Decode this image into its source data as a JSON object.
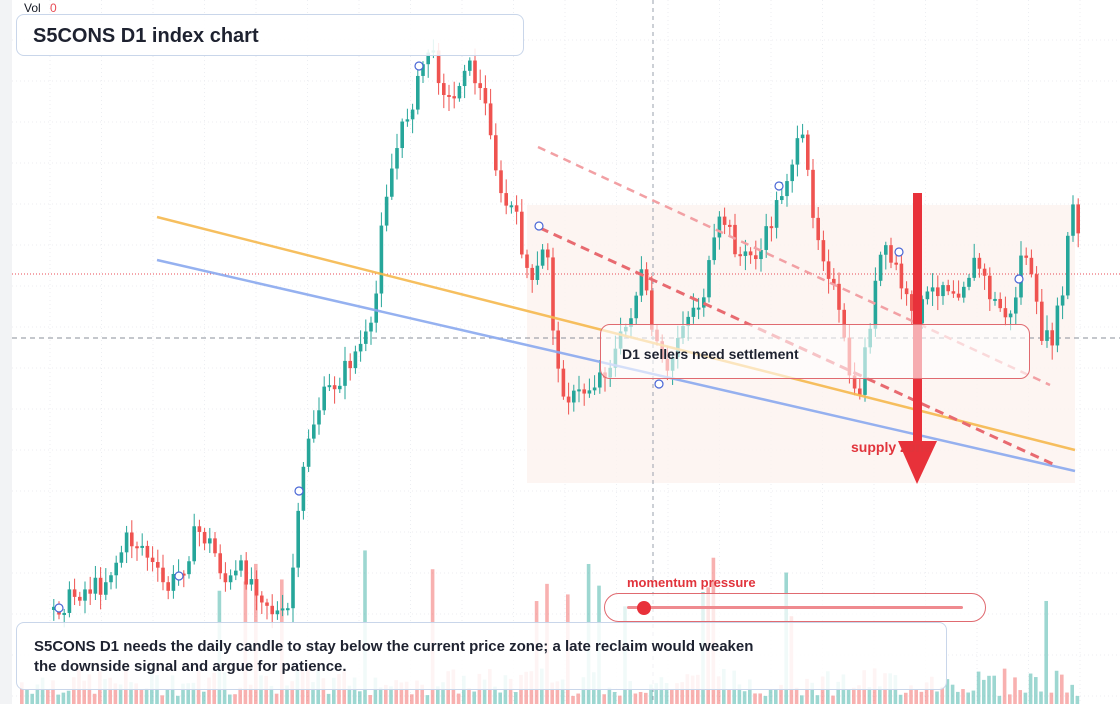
{
  "header": {
    "vol_label": "Vol",
    "vol_value": "0"
  },
  "title": "S5CONS D1 index chart",
  "annotation_box": "D1 sellers need settlement",
  "supply_label": "supply zone",
  "momentum": {
    "label": "momentum pressure",
    "level": 0.05
  },
  "note": "S5CONS D1 needs the daily candle to stay below the current price zone; a late reclaim would weaken the downside signal and argue for patience.",
  "colors": {
    "bull": "#26a69a",
    "bear": "#ef5350",
    "orange_line": "#f6b94e",
    "blue_line": "#8aa9ef",
    "signal": "#e8313a",
    "zone_fill": "#fdf3ef"
  },
  "chart_data": {
    "type": "candlestick",
    "direction_signal": "down",
    "moving_averages": [
      {
        "color": "orange",
        "trend": "falling"
      },
      {
        "color": "blue",
        "trend": "falling"
      }
    ]
  }
}
